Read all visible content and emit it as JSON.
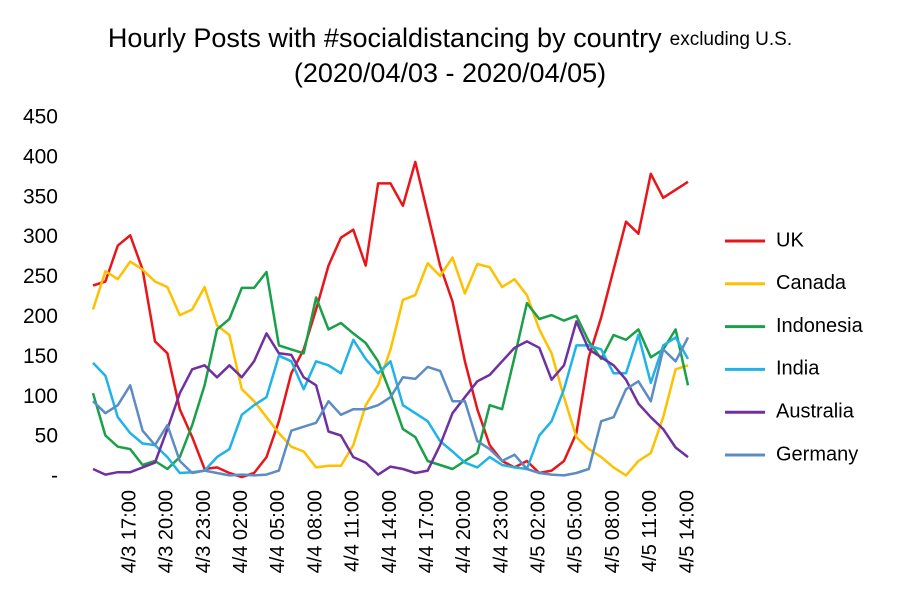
{
  "chart_data": {
    "type": "line",
    "title": "Hourly Posts with #socialdistancing by country",
    "title_note": "excluding U.S.",
    "subtitle": "(2020/04/03 - 2020/04/05)",
    "categories": [
      null,
      null,
      null,
      "4/3 17:00",
      null,
      null,
      "4/3 20:00",
      null,
      null,
      "4/3 23:00",
      null,
      null,
      "4/4 02:00",
      null,
      null,
      "4/4 05:00",
      null,
      null,
      "4/4 08:00",
      null,
      null,
      "4/4 11:00",
      null,
      null,
      "4/4 14:00",
      null,
      null,
      "4/4 17:00",
      null,
      null,
      "4/4 20:00",
      null,
      null,
      "4/4 23:00",
      null,
      null,
      "4/5 02:00",
      null,
      null,
      "4/5 05:00",
      null,
      null,
      "4/5 08:00",
      null,
      null,
      "4/5 11:00",
      null,
      null,
      "4/5 14:00"
    ],
    "series": [
      {
        "name": "UK",
        "color": "#e8161b",
        "values": [
          240,
          245,
          290,
          303,
          260,
          170,
          155,
          85,
          50,
          10,
          12,
          5,
          0,
          5,
          25,
          70,
          130,
          160,
          210,
          265,
          300,
          310,
          265,
          368,
          368,
          340,
          395,
          330,
          265,
          220,
          145,
          85,
          40,
          20,
          12,
          20,
          5,
          8,
          20,
          55,
          150,
          200,
          260,
          320,
          305,
          380,
          350,
          360,
          370
        ]
      },
      {
        "name": "Canada",
        "color": "#ffc000",
        "values": [
          210,
          258,
          248,
          270,
          260,
          245,
          238,
          203,
          210,
          238,
          190,
          178,
          110,
          95,
          75,
          55,
          38,
          32,
          12,
          14,
          14,
          40,
          90,
          115,
          160,
          222,
          228,
          268,
          252,
          275,
          230,
          267,
          263,
          238,
          248,
          228,
          185,
          155,
          100,
          50,
          35,
          25,
          12,
          2,
          20,
          30,
          75,
          135,
          140
        ]
      },
      {
        "name": "Indonesia",
        "color": "#1aa049",
        "values": [
          105,
          52,
          38,
          35,
          15,
          20,
          10,
          25,
          65,
          115,
          185,
          198,
          237,
          237,
          257,
          165,
          160,
          155,
          225,
          185,
          193,
          180,
          168,
          145,
          105,
          60,
          50,
          20,
          15,
          10,
          20,
          30,
          90,
          85,
          150,
          218,
          198,
          203,
          196,
          202,
          170,
          148,
          178,
          172,
          185,
          150,
          160,
          185,
          115
        ]
      },
      {
        "name": "India",
        "color": "#1fb3e8",
        "values": [
          143,
          127,
          75,
          55,
          42,
          40,
          25,
          5,
          6,
          8,
          25,
          35,
          78,
          90,
          100,
          152,
          145,
          110,
          145,
          140,
          130,
          172,
          148,
          130,
          145,
          90,
          80,
          70,
          45,
          32,
          18,
          12,
          25,
          15,
          12,
          10,
          52,
          70,
          110,
          165,
          165,
          160,
          130,
          130,
          178,
          118,
          165,
          175,
          148
        ]
      },
      {
        "name": "Australia",
        "color": "#7030a0",
        "values": [
          10,
          3,
          6,
          6,
          12,
          18,
          60,
          105,
          135,
          140,
          125,
          140,
          125,
          145,
          180,
          155,
          153,
          125,
          115,
          57,
          52,
          25,
          18,
          3,
          13,
          10,
          5,
          8,
          40,
          80,
          100,
          120,
          128,
          145,
          162,
          170,
          162,
          122,
          140,
          195,
          160,
          150,
          140,
          122,
          92,
          75,
          60,
          37,
          25
        ]
      },
      {
        "name": "Germany",
        "color": "#5b8cc4",
        "values": [
          95,
          80,
          90,
          115,
          58,
          40,
          65,
          20,
          5,
          8,
          5,
          2,
          3,
          2,
          3,
          8,
          58,
          63,
          68,
          95,
          78,
          85,
          85,
          90,
          100,
          125,
          123,
          138,
          133,
          95,
          95,
          45,
          35,
          20,
          28,
          10,
          5,
          3,
          2,
          5,
          10,
          70,
          75,
          110,
          120,
          95,
          160,
          145,
          175
        ]
      }
    ],
    "ylim": [
      0,
      450
    ],
    "yticks": [
      {
        "value": 0,
        "label": "-"
      },
      50,
      100,
      150,
      200,
      250,
      300,
      350,
      400,
      450
    ],
    "grid": false,
    "legend": "right"
  }
}
